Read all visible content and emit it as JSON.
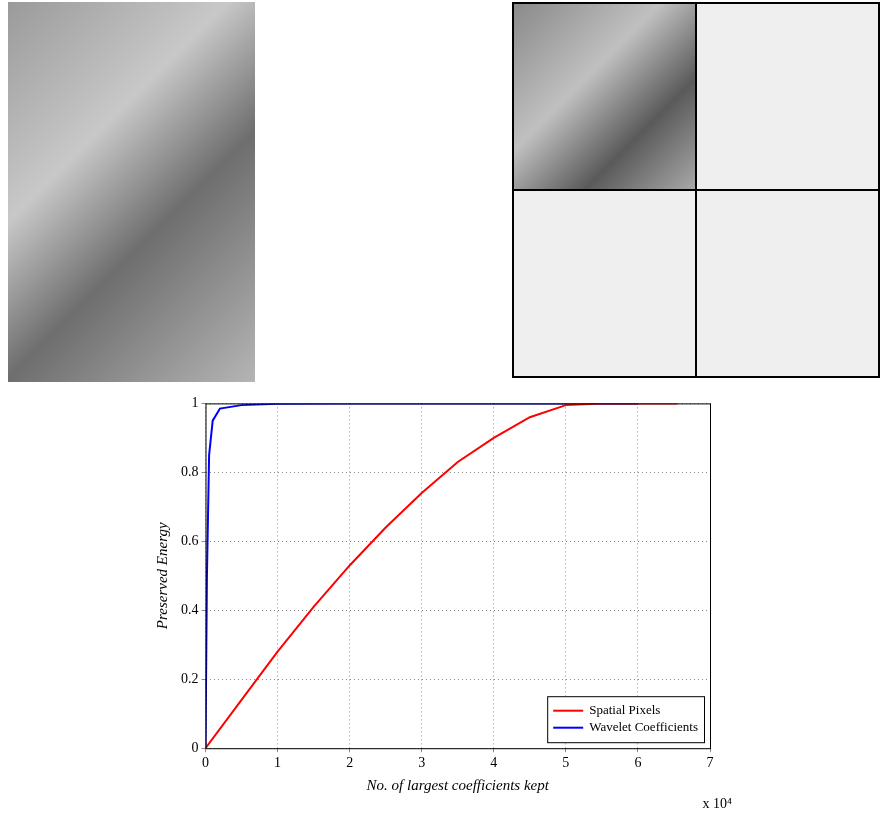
{
  "chart_data": {
    "type": "line",
    "x_label": "No. of largest coefficients kept",
    "y_label": "Preserved Energy",
    "annotations": [
      "x 10⁴"
    ],
    "xlim": [
      0,
      7
    ],
    "xticks": [
      0,
      1,
      2,
      3,
      4,
      5,
      6,
      7
    ],
    "ylim": [
      0,
      1
    ],
    "yticks": [
      0,
      0.2,
      0.4,
      0.6,
      0.8,
      1
    ],
    "grid": true,
    "legend": "lower right",
    "series": [
      {
        "name": "Spatial Pixels",
        "color": "#ff0000",
        "marker": "none",
        "line_style": "solid",
        "x": [
          0,
          0.5,
          1,
          1.5,
          2,
          2.5,
          3,
          3.5,
          4,
          4.5,
          5,
          5.5,
          6,
          6.55
        ],
        "values": [
          0,
          0.14,
          0.28,
          0.41,
          0.53,
          0.64,
          0.74,
          0.83,
          0.9,
          0.96,
          0.995,
          1,
          1,
          1
        ]
      },
      {
        "name": "Wavelet Coefficients",
        "color": "#0000ff",
        "marker": "none",
        "line_style": "solid",
        "x": [
          0,
          0.02,
          0.05,
          0.1,
          0.2,
          0.5,
          1,
          2,
          4,
          6
        ],
        "values": [
          0,
          0.5,
          0.85,
          0.95,
          0.985,
          0.995,
          0.999,
          1,
          1,
          1
        ]
      }
    ]
  }
}
